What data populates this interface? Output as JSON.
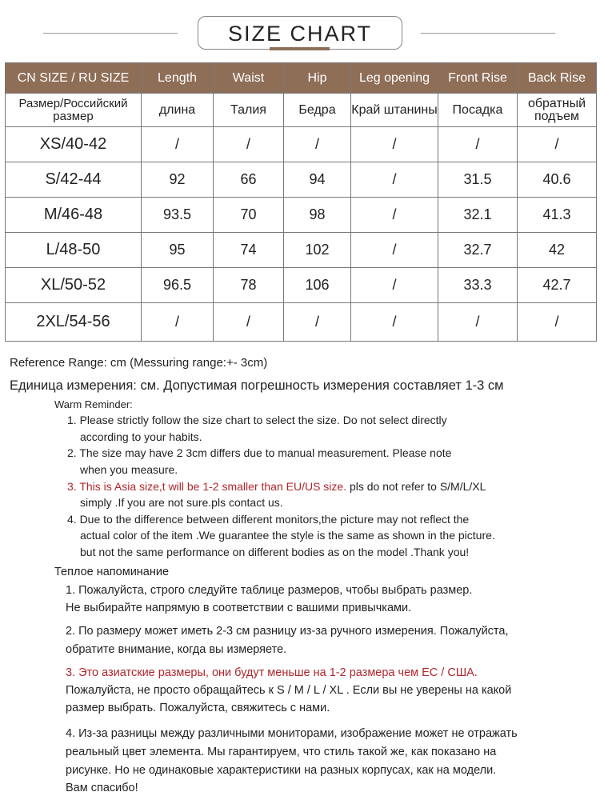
{
  "title": "SIZE CHART",
  "accent_color": "#8f6e58",
  "warning_color": "#b0262c",
  "table": {
    "headers": [
      "CN SIZE / RU SIZE",
      "Length",
      "Waist",
      "Hip",
      "Leg opening",
      "Front Rise",
      "Back Rise"
    ],
    "ru_headers": [
      "Размер/Российский размер",
      "длина",
      "Талия",
      "Бедра",
      "Край штанины",
      "Посадка",
      "обратный подъем"
    ],
    "rows": [
      [
        "XS/40-42",
        "/",
        "/",
        "/",
        "/",
        "/",
        "/"
      ],
      [
        "S/42-44",
        "92",
        "66",
        "94",
        "/",
        "31.5",
        "40.6"
      ],
      [
        "M/46-48",
        "93.5",
        "70",
        "98",
        "/",
        "32.1",
        "41.3"
      ],
      [
        "L/48-50",
        "95",
        "74",
        "102",
        "/",
        "32.7",
        "42"
      ],
      [
        "XL/50-52",
        "96.5",
        "78",
        "106",
        "/",
        "33.3",
        "42.7"
      ],
      [
        "2XL/54-56",
        "/",
        "/",
        "/",
        "/",
        "/",
        "/"
      ]
    ]
  },
  "reference": "Reference Range: cm (Messuring range:+- 3cm)",
  "reference_ru": "Единица измерения: см. Допустимая погрешность измерения составляет 1-3 см",
  "en": {
    "heading": "Warm Reminder:",
    "lines": [
      "1. Please strictly follow the size chart to select the size. Do not select directly",
      "according to your habits.",
      "2. The size may have 2 3cm differs due to manual measurement. Please note",
      "when you measure.",
      "3. This is Asia size,t will be 1-2 smaller than EU/US size.",
      " pls do not refer to S/M/L/XL",
      "simply .If you are not sure.pls contact us.",
      "4. Due to the difference between different monitors,the picture may not reflect the",
      "actual color of the item .We guarantee the style is the same as shown in the picture.",
      "but not the same performance on different bodies as on the model .Thank you!"
    ]
  },
  "ru": {
    "heading": "Теплое напоминание",
    "lines": [
      "1. Пожалуйста, строго следуйте таблице размеров, чтобы выбрать размер.",
      "Не выбирайте напрямую в соответствии с вашими привычками.",
      "2. По размеру может иметь 2-3 см разницу из-за ручного измерения. Пожалуйста,",
      "обратите внимание, когда вы измеряете.",
      "3. Это азиатские размеры, они будут меньше на 1-2 размера чем ЕС / США.",
      "Пожалуйста, не просто обращайтесь к S / M / L / XL . Если вы не уверены на какой",
      "размер выбрать. Пожалуйста, свяжитесь с нами.",
      "4. Из-за разницы между различными мониторами, изображение может не отражать",
      "реальный цвет элемента. Мы гарантируем, что стиль такой же, как показано на",
      "рисунке. Но не одинаковые характеристики на разных корпусах, как на модели.",
      "Вам спасибо!"
    ]
  }
}
